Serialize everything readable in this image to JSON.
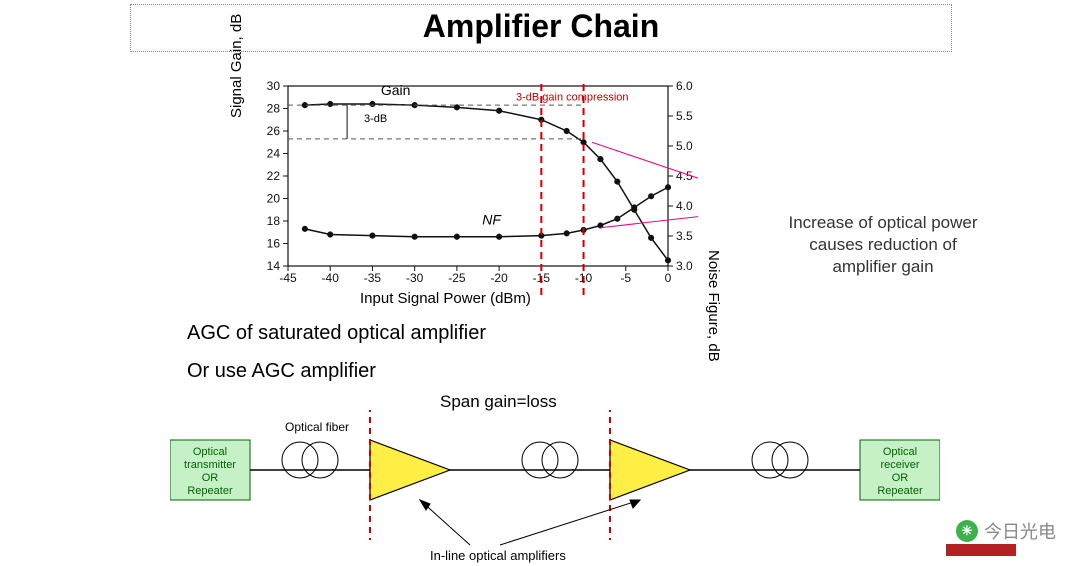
{
  "title": "Amplifier Chain",
  "chart": {
    "type": "line-dual-axis",
    "x_axis": {
      "label": "Input Signal Power (dBm)",
      "ticks": [
        -45,
        -40,
        -35,
        -30,
        -25,
        -20,
        -15,
        -10,
        -5,
        0
      ],
      "lim": [
        -45,
        0
      ]
    },
    "y1_axis": {
      "label": "Signal Gain, dB",
      "ticks": [
        14,
        16,
        18,
        20,
        22,
        24,
        26,
        28,
        30
      ],
      "lim": [
        14,
        30
      ]
    },
    "y2_axis": {
      "label": "Noise Figure, dB",
      "ticks": [
        3.0,
        3.5,
        4.0,
        4.5,
        5.0,
        5.5,
        6.0
      ],
      "lim": [
        3.0,
        6.0
      ]
    },
    "gain_series": {
      "label": "Gain",
      "x": [
        -43,
        -40,
        -35,
        -30,
        -25,
        -20,
        -15,
        -12,
        -10,
        -8,
        -6,
        -4,
        -2,
        0
      ],
      "y": [
        28.3,
        28.4,
        28.4,
        28.3,
        28.1,
        27.8,
        27.0,
        26.0,
        25.0,
        23.5,
        21.5,
        19.0,
        16.5,
        14.5
      ],
      "color": "#111",
      "marker": "circle",
      "marker_size": 4,
      "line_width": 1.5
    },
    "nf_series": {
      "label": "NF",
      "x": [
        -43,
        -40,
        -35,
        -30,
        -25,
        -20,
        -15,
        -12,
        -10,
        -8,
        -6,
        -4,
        -2,
        0
      ],
      "y": [
        17.3,
        16.8,
        16.7,
        16.6,
        16.6,
        16.6,
        16.7,
        16.9,
        17.2,
        17.6,
        18.2,
        19.2,
        20.2,
        21.0
      ],
      "color": "#111",
      "marker": "circle",
      "marker_size": 4,
      "line_width": 1.5
    },
    "annotations": {
      "gain_label": "Gain",
      "nf_label": "NF",
      "three_db": "3-dB",
      "three_db_comp": "3-dB gain compression",
      "dash_color": "#555",
      "dash_pattern": "5 4",
      "red_dash_x": [
        -15,
        -10
      ],
      "red_dash_color": "#cc0000"
    },
    "callout_text": "Increase of optical power causes reduction of amplifier gain",
    "background": "#ffffff",
    "axis_color": "#111",
    "tick_fontsize": 12
  },
  "text": {
    "agc1": "AGC of saturated optical amplifier",
    "agc2": "Or use AGC amplifier",
    "span": "Span gain=loss",
    "fiber": "Optical fiber",
    "inline": "In-line optical amplifiers"
  },
  "diagram": {
    "tx_box": [
      "Optical",
      "transmitter",
      "OR",
      "Repeater"
    ],
    "rx_box": [
      "Optical",
      "receiver",
      "OR",
      "Repeater"
    ],
    "amp_fill": "#ffee44",
    "amp_stroke": "#000",
    "fiber_color": "#000",
    "box_fill": "#c6f0c6",
    "box_stroke": "#006400",
    "red_dash_color": "#cc0000"
  },
  "watermark": "今日光电",
  "colors": {
    "title": "#111",
    "text": "#222"
  }
}
